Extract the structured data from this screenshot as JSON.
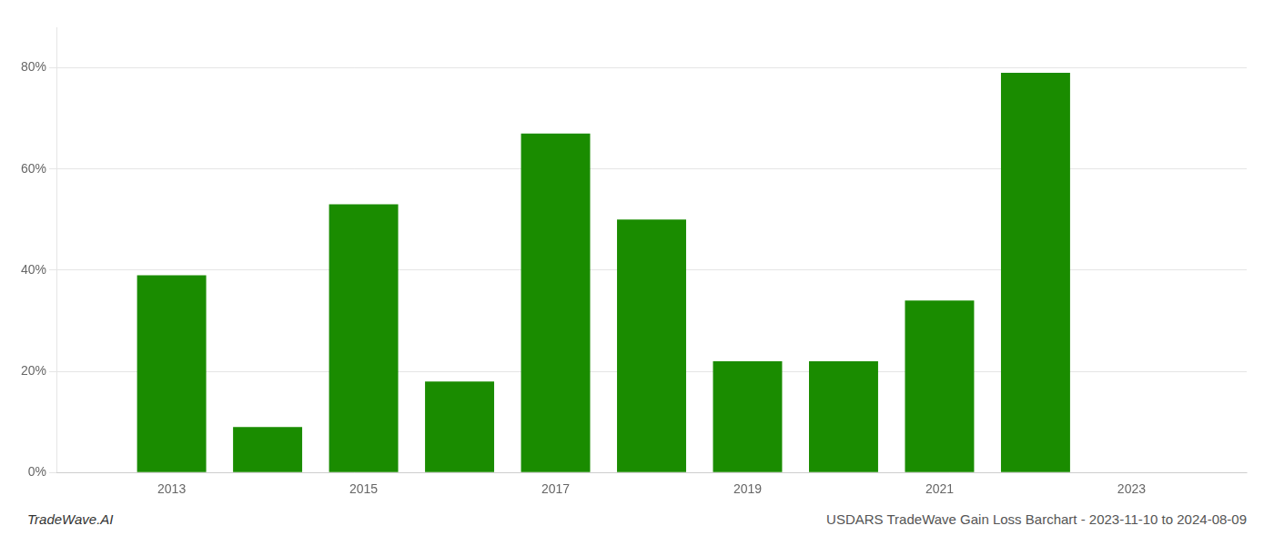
{
  "chart_data": {
    "type": "bar",
    "x": [
      2013,
      2014,
      2015,
      2016,
      2017,
      2018,
      2019,
      2020,
      2021,
      2022
    ],
    "values": [
      0.39,
      0.09,
      0.53,
      0.18,
      0.67,
      0.5,
      0.22,
      0.22,
      0.34,
      0.79
    ],
    "color": "#1a8c00",
    "xlim": [
      2011.8,
      2024.2
    ],
    "xticks": [
      2013,
      2015,
      2017,
      2019,
      2021,
      2023
    ],
    "ylim": [
      0,
      0.88
    ],
    "yticks": [
      {
        "value": 0.0,
        "label": "0%"
      },
      {
        "value": 0.2,
        "label": "20%"
      },
      {
        "value": 0.4,
        "label": "40%"
      },
      {
        "value": 0.6,
        "label": "60%"
      },
      {
        "value": 0.8,
        "label": "80%"
      }
    ],
    "grid": "y",
    "annotations": [
      "TradeWave.AI",
      "USDARS TradeWave Gain Loss Barchart - 2023-11-10 to 2024-08-09"
    ]
  }
}
